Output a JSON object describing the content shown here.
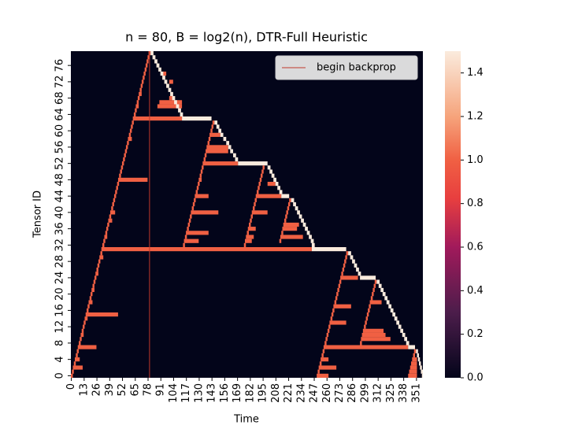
{
  "chart_data": {
    "type": "heatmap",
    "title": "n = 80, B = log2(n), DTR-Full Heuristic",
    "x_label": "Time",
    "y_label": "Tensor ID",
    "xlim": [
      0,
      358
    ],
    "ylim": [
      0,
      80
    ],
    "xticks": [
      0,
      13,
      26,
      39,
      52,
      65,
      78,
      91,
      104,
      117,
      130,
      143,
      156,
      169,
      182,
      195,
      208,
      221,
      234,
      247,
      260,
      273,
      286,
      299,
      312,
      325,
      338,
      351
    ],
    "yticks": [
      0,
      4,
      8,
      12,
      16,
      20,
      24,
      28,
      32,
      36,
      40,
      44,
      48,
      52,
      56,
      60,
      64,
      68,
      72,
      76
    ],
    "background": 0,
    "colorbar": {
      "lim": [
        0,
        1.5
      ],
      "ticks": [
        {
          "value": 0,
          "label": "0.0"
        },
        {
          "value": 0.2,
          "label": "0.2"
        },
        {
          "value": 0.4,
          "label": "0.4"
        },
        {
          "value": 0.6,
          "label": "0.6"
        },
        {
          "value": 0.8,
          "label": "0.8"
        },
        {
          "value": 1,
          "label": "1.0"
        },
        {
          "value": 1.2,
          "label": "1.2"
        },
        {
          "value": 1.4,
          "label": "1.4"
        }
      ]
    },
    "backprop": {
      "x": 80,
      "label": "begin backprop",
      "color": "#c0392b"
    },
    "legend": "upper right",
    "cells": [
      [
        0,
        0,
        2,
        1
      ],
      [
        1,
        1,
        3,
        1
      ],
      [
        2,
        2,
        12,
        1
      ],
      [
        3,
        3,
        5,
        1
      ],
      [
        4,
        4,
        9,
        1
      ],
      [
        5,
        5,
        7,
        1
      ],
      [
        6,
        6,
        8,
        1
      ],
      [
        7,
        7,
        26,
        1
      ],
      [
        8,
        8,
        10,
        1
      ],
      [
        9,
        9,
        11,
        1
      ],
      [
        10,
        10,
        13,
        1
      ],
      [
        11,
        11,
        13,
        1
      ],
      [
        12,
        12,
        14,
        1
      ],
      [
        13,
        13,
        15,
        1
      ],
      [
        14,
        14,
        17,
        1
      ],
      [
        15,
        15,
        48,
        1
      ],
      [
        16,
        16,
        18,
        1
      ],
      [
        17,
        17,
        19,
        1
      ],
      [
        18,
        18,
        22,
        1
      ],
      [
        19,
        19,
        21,
        1
      ],
      [
        20,
        20,
        22,
        1
      ],
      [
        21,
        21,
        24,
        1
      ],
      [
        22,
        22,
        24,
        1
      ],
      [
        23,
        23,
        25,
        1
      ],
      [
        24,
        24,
        26,
        1
      ],
      [
        25,
        25,
        28,
        1
      ],
      [
        26,
        26,
        28,
        1
      ],
      [
        27,
        27,
        29,
        1
      ],
      [
        28,
        28,
        30,
        1
      ],
      [
        29,
        29,
        33,
        1
      ],
      [
        30,
        30,
        32,
        1
      ],
      [
        31,
        31,
        245,
        1
      ],
      [
        32,
        32,
        34,
        1
      ],
      [
        33,
        33,
        35,
        1
      ],
      [
        34,
        34,
        37,
        1
      ],
      [
        35,
        35,
        37,
        1
      ],
      [
        36,
        36,
        38,
        1
      ],
      [
        37,
        37,
        39,
        1
      ],
      [
        38,
        38,
        42,
        1
      ],
      [
        39,
        39,
        41,
        1
      ],
      [
        40,
        40,
        45,
        1
      ],
      [
        41,
        41,
        43,
        1
      ],
      [
        42,
        42,
        44,
        1
      ],
      [
        43,
        43,
        45,
        1
      ],
      [
        44,
        44,
        46,
        1
      ],
      [
        45,
        45,
        47,
        1
      ],
      [
        46,
        46,
        48,
        1
      ],
      [
        47,
        47,
        49,
        1
      ],
      [
        48,
        48,
        78,
        1
      ],
      [
        49,
        49,
        51,
        1
      ],
      [
        50,
        50,
        52,
        1
      ],
      [
        51,
        51,
        53,
        1
      ],
      [
        52,
        52,
        54,
        1
      ],
      [
        53,
        53,
        55,
        1
      ],
      [
        54,
        54,
        56,
        1
      ],
      [
        55,
        55,
        57,
        1
      ],
      [
        56,
        56,
        58,
        1
      ],
      [
        57,
        57,
        59,
        1
      ],
      [
        58,
        58,
        62,
        1
      ],
      [
        59,
        59,
        61,
        1
      ],
      [
        60,
        60,
        62,
        1
      ],
      [
        61,
        61,
        63,
        1
      ],
      [
        62,
        62,
        64,
        1
      ],
      [
        63,
        63,
        113,
        1
      ],
      [
        64,
        64,
        66,
        1
      ],
      [
        65,
        65,
        67,
        1
      ],
      [
        66,
        66,
        69,
        1
      ],
      [
        67,
        67,
        69,
        1
      ],
      [
        68,
        68,
        70,
        1
      ],
      [
        69,
        69,
        72,
        1
      ],
      [
        70,
        70,
        72,
        1
      ],
      [
        71,
        71,
        73,
        1
      ],
      [
        72,
        72,
        74,
        1
      ],
      [
        73,
        73,
        75,
        1
      ],
      [
        74,
        74,
        76,
        1
      ],
      [
        75,
        75,
        77,
        1
      ],
      [
        76,
        76,
        78,
        1
      ],
      [
        77,
        77,
        79,
        1
      ],
      [
        78,
        78,
        80,
        1
      ],
      [
        79,
        79,
        81,
        1
      ],
      [
        66,
        88,
        113,
        1
      ],
      [
        67,
        90,
        113,
        1
      ],
      [
        72,
        100,
        104,
        1
      ],
      [
        74,
        92,
        97,
        1
      ],
      [
        68,
        100,
        104,
        1
      ],
      [
        79,
        81,
        84,
        1.5
      ],
      [
        78,
        83,
        86,
        1.5
      ],
      [
        77,
        85,
        88,
        1.5
      ],
      [
        76,
        87,
        90,
        1.5
      ],
      [
        75,
        89,
        92,
        1.5
      ],
      [
        74,
        91,
        94,
        1.5
      ],
      [
        73,
        93,
        96,
        1.5
      ],
      [
        72,
        95,
        98,
        1.5
      ],
      [
        71,
        97,
        100,
        1.5
      ],
      [
        70,
        99,
        102,
        1.5
      ],
      [
        69,
        101,
        104,
        1.5
      ],
      [
        68,
        103,
        106,
        1.5
      ],
      [
        67,
        105,
        108,
        1.5
      ],
      [
        66,
        107,
        110,
        1.5
      ],
      [
        65,
        109,
        112,
        1.5
      ],
      [
        64,
        111,
        114,
        1.5
      ],
      [
        63,
        113,
        143,
        1.5
      ],
      [
        32,
        114,
        116,
        1
      ],
      [
        33,
        115,
        130,
        1
      ],
      [
        34,
        116,
        118,
        1
      ],
      [
        35,
        117,
        140,
        1
      ],
      [
        36,
        118,
        120,
        1
      ],
      [
        37,
        119,
        121,
        1
      ],
      [
        38,
        120,
        122,
        1
      ],
      [
        39,
        121,
        123,
        1
      ],
      [
        40,
        122,
        150,
        1
      ],
      [
        41,
        123,
        125,
        1
      ],
      [
        42,
        124,
        126,
        1
      ],
      [
        43,
        125,
        127,
        1
      ],
      [
        44,
        126,
        140,
        1
      ],
      [
        45,
        127,
        129,
        1
      ],
      [
        46,
        128,
        130,
        1
      ],
      [
        47,
        129,
        131,
        1
      ],
      [
        48,
        130,
        133,
        1
      ],
      [
        49,
        131,
        133,
        1
      ],
      [
        50,
        132,
        134,
        1
      ],
      [
        51,
        133,
        135,
        1
      ],
      [
        52,
        134,
        170,
        1
      ],
      [
        53,
        135,
        137,
        1
      ],
      [
        54,
        136,
        138,
        1
      ],
      [
        55,
        137,
        160,
        1
      ],
      [
        56,
        138,
        160,
        1
      ],
      [
        57,
        139,
        141,
        1
      ],
      [
        58,
        140,
        142,
        1
      ],
      [
        59,
        141,
        152,
        1
      ],
      [
        60,
        142,
        144,
        1
      ],
      [
        61,
        143,
        145,
        1
      ],
      [
        62,
        144,
        146,
        1
      ],
      [
        62,
        146,
        149,
        1.5
      ],
      [
        61,
        148,
        151,
        1.5
      ],
      [
        60,
        150,
        153,
        1.5
      ],
      [
        59,
        152,
        155,
        1.5
      ],
      [
        58,
        155,
        158,
        1.5
      ],
      [
        57,
        158,
        161,
        1.5
      ],
      [
        56,
        160,
        163,
        1.5
      ],
      [
        55,
        162,
        165,
        1.5
      ],
      [
        54,
        165,
        168,
        1.5
      ],
      [
        53,
        167,
        170,
        1.5
      ],
      [
        52,
        170,
        200,
        1.5
      ],
      [
        32,
        176,
        178,
        1
      ],
      [
        33,
        177,
        184,
        1
      ],
      [
        34,
        178,
        186,
        1
      ],
      [
        35,
        179,
        181,
        1
      ],
      [
        36,
        180,
        188,
        1
      ],
      [
        37,
        181,
        183,
        1
      ],
      [
        38,
        182,
        184,
        1
      ],
      [
        39,
        183,
        185,
        1
      ],
      [
        40,
        184,
        200,
        1
      ],
      [
        41,
        185,
        187,
        1
      ],
      [
        42,
        186,
        188,
        1
      ],
      [
        43,
        187,
        189,
        1
      ],
      [
        44,
        188,
        214,
        1
      ],
      [
        45,
        189,
        191,
        1
      ],
      [
        46,
        190,
        192,
        1
      ],
      [
        47,
        191,
        193,
        1
      ],
      [
        48,
        192,
        194,
        1
      ],
      [
        49,
        193,
        195,
        1
      ],
      [
        50,
        194,
        196,
        1
      ],
      [
        51,
        195,
        197,
        1
      ],
      [
        47,
        200,
        208,
        1
      ],
      [
        51,
        200,
        203,
        1.5
      ],
      [
        50,
        202,
        205,
        1.5
      ],
      [
        49,
        204,
        207,
        1.5
      ],
      [
        48,
        206,
        209,
        1.5
      ],
      [
        47,
        208,
        211,
        1.5
      ],
      [
        46,
        210,
        213,
        1.5
      ],
      [
        45,
        212,
        215,
        1.5
      ],
      [
        44,
        214,
        222,
        1.5
      ],
      [
        33,
        212,
        214,
        1
      ],
      [
        34,
        213,
        236,
        1
      ],
      [
        35,
        214,
        216,
        1
      ],
      [
        36,
        215,
        230,
        1
      ],
      [
        37,
        216,
        232,
        1
      ],
      [
        38,
        217,
        219,
        1
      ],
      [
        39,
        218,
        220,
        1
      ],
      [
        40,
        219,
        221,
        1
      ],
      [
        41,
        220,
        222,
        1
      ],
      [
        42,
        221,
        223,
        1
      ],
      [
        43,
        222,
        224,
        1
      ],
      [
        43,
        224,
        227,
        1.5
      ],
      [
        42,
        226,
        229,
        1.5
      ],
      [
        41,
        228,
        231,
        1.5
      ],
      [
        40,
        230,
        233,
        1.5
      ],
      [
        39,
        232,
        235,
        1.5
      ],
      [
        38,
        234,
        237,
        1.5
      ],
      [
        37,
        236,
        239,
        1.5
      ],
      [
        36,
        238,
        241,
        1.5
      ],
      [
        35,
        240,
        243,
        1.5
      ],
      [
        34,
        242,
        245,
        1.5
      ],
      [
        33,
        244,
        247,
        1.5
      ],
      [
        32,
        245,
        248,
        1.5
      ],
      [
        31,
        245,
        280,
        1.5
      ],
      [
        0,
        250,
        262,
        1
      ],
      [
        1,
        251,
        253,
        1
      ],
      [
        2,
        252,
        270,
        1
      ],
      [
        3,
        253,
        255,
        1
      ],
      [
        4,
        254,
        262,
        1
      ],
      [
        5,
        255,
        257,
        1
      ],
      [
        6,
        256,
        258,
        1
      ],
      [
        7,
        257,
        343,
        1
      ],
      [
        8,
        258,
        260,
        1
      ],
      [
        9,
        259,
        261,
        1
      ],
      [
        10,
        260,
        262,
        1
      ],
      [
        11,
        261,
        263,
        1
      ],
      [
        12,
        262,
        264,
        1
      ],
      [
        13,
        263,
        280,
        1
      ],
      [
        14,
        264,
        266,
        1
      ],
      [
        15,
        265,
        267,
        1
      ],
      [
        16,
        266,
        268,
        1
      ],
      [
        17,
        267,
        285,
        1
      ],
      [
        18,
        268,
        270,
        1
      ],
      [
        19,
        269,
        271,
        1
      ],
      [
        20,
        270,
        272,
        1
      ],
      [
        21,
        271,
        273,
        1
      ],
      [
        22,
        272,
        274,
        1
      ],
      [
        23,
        273,
        275,
        1
      ],
      [
        24,
        274,
        292,
        1
      ],
      [
        25,
        275,
        277,
        1
      ],
      [
        26,
        276,
        278,
        1
      ],
      [
        27,
        277,
        279,
        1
      ],
      [
        28,
        278,
        280,
        1
      ],
      [
        29,
        279,
        281,
        1
      ],
      [
        30,
        280,
        282,
        1
      ],
      [
        30,
        282,
        285,
        1.5
      ],
      [
        29,
        284,
        287,
        1.5
      ],
      [
        28,
        286,
        289,
        1.5
      ],
      [
        27,
        288,
        291,
        1.5
      ],
      [
        26,
        290,
        293,
        1.5
      ],
      [
        25,
        292,
        295,
        1.5
      ],
      [
        24,
        294,
        310,
        1.5
      ],
      [
        8,
        294,
        296,
        1
      ],
      [
        9,
        295,
        325,
        1
      ],
      [
        10,
        296,
        320,
        1
      ],
      [
        11,
        297,
        318,
        1
      ],
      [
        12,
        298,
        300,
        1
      ],
      [
        13,
        299,
        301,
        1
      ],
      [
        14,
        300,
        302,
        1
      ],
      [
        15,
        301,
        303,
        1
      ],
      [
        16,
        302,
        304,
        1
      ],
      [
        17,
        303,
        305,
        1
      ],
      [
        18,
        304,
        316,
        1
      ],
      [
        19,
        305,
        307,
        1
      ],
      [
        20,
        306,
        308,
        1
      ],
      [
        21,
        307,
        309,
        1
      ],
      [
        22,
        308,
        310,
        1
      ],
      [
        23,
        309,
        311,
        1
      ],
      [
        23,
        311,
        314,
        1.5
      ],
      [
        22,
        313,
        316,
        1.5
      ],
      [
        21,
        315,
        318,
        1.5
      ],
      [
        20,
        317,
        320,
        1.5
      ],
      [
        19,
        319,
        322,
        1.5
      ],
      [
        18,
        321,
        324,
        1.5
      ],
      [
        17,
        323,
        326,
        1.5
      ],
      [
        16,
        325,
        328,
        1.5
      ],
      [
        15,
        327,
        330,
        1.5
      ],
      [
        14,
        329,
        332,
        1.5
      ],
      [
        13,
        331,
        334,
        1.5
      ],
      [
        12,
        333,
        336,
        1.5
      ],
      [
        11,
        335,
        338,
        1.5
      ],
      [
        10,
        337,
        340,
        1.5
      ],
      [
        9,
        339,
        342,
        1.5
      ],
      [
        8,
        341,
        344,
        1.5
      ],
      [
        7,
        343,
        350,
        1.5
      ],
      [
        0,
        343,
        352,
        1
      ],
      [
        1,
        344,
        352,
        1
      ],
      [
        2,
        345,
        352,
        1
      ],
      [
        3,
        346,
        352,
        1
      ],
      [
        4,
        347,
        352,
        1
      ],
      [
        5,
        348,
        350,
        1
      ],
      [
        6,
        349,
        351,
        1
      ],
      [
        6,
        351,
        353,
        1.5
      ],
      [
        5,
        352,
        354,
        1.5
      ],
      [
        4,
        353,
        355,
        1.5
      ],
      [
        3,
        354,
        356,
        1.5
      ],
      [
        2,
        355,
        357,
        1.5
      ],
      [
        1,
        356,
        358,
        1.5
      ],
      [
        0,
        357,
        358,
        1.5
      ]
    ]
  }
}
